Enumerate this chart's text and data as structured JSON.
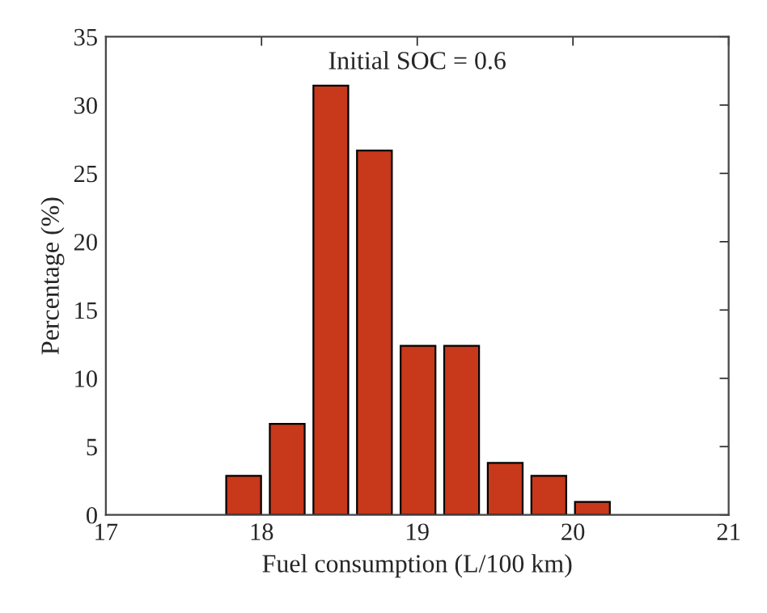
{
  "chart_data": {
    "type": "histogram",
    "xlabel": "Fuel consumption (L/100 km)",
    "ylabel": "Percentage (%)",
    "annotations": [
      "Initial SOC = 0.6"
    ],
    "bins": [
      17.745,
      18.025,
      18.305,
      18.585,
      18.865,
      19.145,
      19.425,
      19.705,
      19.985,
      20.265
    ],
    "values": [
      2.86,
      6.67,
      31.43,
      26.67,
      12.38,
      12.38,
      3.81,
      2.86,
      0.95
    ],
    "color": "#c8381a",
    "xlim": [
      17,
      21
    ],
    "xticks": [
      17,
      18,
      19,
      20,
      21
    ],
    "ylim": [
      0,
      35
    ],
    "yticks": [
      0,
      5,
      10,
      15,
      20,
      25,
      30,
      35
    ],
    "grid": false
  }
}
